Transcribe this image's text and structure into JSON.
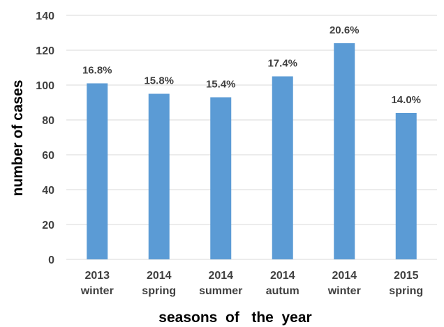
{
  "chart_data": {
    "type": "bar",
    "categories": [
      [
        "2013",
        "winter"
      ],
      [
        "2014",
        "spring"
      ],
      [
        "2014",
        "summer"
      ],
      [
        "2014",
        "autum"
      ],
      [
        "2014",
        "winter"
      ],
      [
        "2015",
        "spring"
      ]
    ],
    "values": [
      101,
      95,
      93,
      105,
      124,
      84
    ],
    "data_labels": [
      "16.8%",
      "15.8%",
      "15.4%",
      "17.4%",
      "20.6%",
      "14.0%"
    ],
    "title": "",
    "xlabel": "seasons  of   the  year",
    "ylabel": "number of cases",
    "ylim": [
      0,
      140
    ],
    "yticks": [
      "0",
      "20",
      "40",
      "60",
      "80",
      "100",
      "120",
      "140"
    ],
    "grid": "horizontal",
    "legend": "none",
    "colors": {
      "bar": "#5B9BD5",
      "grid": "#D9D9D9",
      "text": "#404040"
    }
  }
}
